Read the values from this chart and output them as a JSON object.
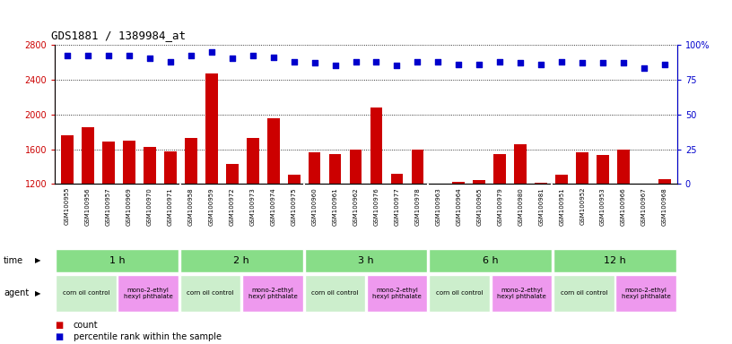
{
  "title": "GDS1881 / 1389984_at",
  "samples": [
    "GSM100955",
    "GSM100956",
    "GSM100957",
    "GSM100969",
    "GSM100970",
    "GSM100971",
    "GSM100958",
    "GSM100959",
    "GSM100972",
    "GSM100973",
    "GSM100974",
    "GSM100975",
    "GSM100960",
    "GSM100961",
    "GSM100962",
    "GSM100976",
    "GSM100977",
    "GSM100978",
    "GSM100963",
    "GSM100964",
    "GSM100965",
    "GSM100979",
    "GSM100980",
    "GSM100981",
    "GSM100951",
    "GSM100952",
    "GSM100953",
    "GSM100966",
    "GSM100967",
    "GSM100968"
  ],
  "counts": [
    1760,
    1850,
    1690,
    1700,
    1630,
    1580,
    1730,
    2470,
    1430,
    1730,
    1960,
    1310,
    1560,
    1540,
    1600,
    2080,
    1320,
    1600,
    1200,
    1220,
    1250,
    1540,
    1660,
    1210,
    1310,
    1560,
    1530,
    1600,
    1100,
    1260
  ],
  "percentiles": [
    92,
    92,
    92,
    92,
    90,
    88,
    92,
    95,
    90,
    92,
    91,
    88,
    87,
    85,
    88,
    88,
    85,
    88,
    88,
    86,
    86,
    88,
    87,
    86,
    88,
    87,
    87,
    87,
    83,
    86
  ],
  "ylim_left": [
    1200,
    2800
  ],
  "ylim_right": [
    0,
    100
  ],
  "yticks_left": [
    1200,
    1600,
    2000,
    2400,
    2800
  ],
  "yticks_right": [
    0,
    25,
    50,
    75,
    100
  ],
  "bar_color": "#cc0000",
  "dot_color": "#0000cc",
  "time_groups": [
    {
      "label": "1 h",
      "start": 0,
      "end": 6
    },
    {
      "label": "2 h",
      "start": 6,
      "end": 12
    },
    {
      "label": "3 h",
      "start": 12,
      "end": 18
    },
    {
      "label": "6 h",
      "start": 18,
      "end": 24
    },
    {
      "label": "12 h",
      "start": 24,
      "end": 30
    }
  ],
  "agent_groups": [
    {
      "label": "corn oil control",
      "start": 0,
      "end": 3,
      "color": "#cceecc"
    },
    {
      "label": "mono-2-ethyl\nhexyl phthalate",
      "start": 3,
      "end": 6,
      "color": "#ee99ee"
    },
    {
      "label": "corn oil control",
      "start": 6,
      "end": 9,
      "color": "#cceecc"
    },
    {
      "label": "mono-2-ethyl\nhexyl phthalate",
      "start": 9,
      "end": 12,
      "color": "#ee99ee"
    },
    {
      "label": "corn oil control",
      "start": 12,
      "end": 15,
      "color": "#cceecc"
    },
    {
      "label": "mono-2-ethyl\nhexyl phthalate",
      "start": 15,
      "end": 18,
      "color": "#ee99ee"
    },
    {
      "label": "corn oil control",
      "start": 18,
      "end": 21,
      "color": "#cceecc"
    },
    {
      "label": "mono-2-ethyl\nhexyl phthalate",
      "start": 21,
      "end": 24,
      "color": "#ee99ee"
    },
    {
      "label": "corn oil control",
      "start": 24,
      "end": 27,
      "color": "#cceecc"
    },
    {
      "label": "mono-2-ethyl\nhexyl phthalate",
      "start": 27,
      "end": 30,
      "color": "#ee99ee"
    }
  ],
  "time_row_color": "#88dd88",
  "label_area_color": "#e8e8e8",
  "legend_count_color": "#cc0000",
  "legend_dot_color": "#0000cc",
  "background_color": "#ffffff"
}
